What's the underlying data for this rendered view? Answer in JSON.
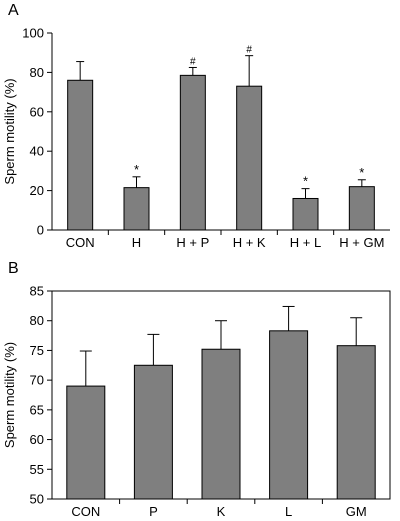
{
  "chart_data": [
    {
      "type": "bar",
      "panel_label": "A",
      "title": "",
      "xlabel": "",
      "ylabel": "Sperm motility (%)",
      "ylim": [
        0,
        100
      ],
      "yticks": [
        "0",
        "20",
        "40",
        "60",
        "80",
        "100"
      ],
      "categories": [
        "CON",
        "H",
        "H + P",
        "H + K",
        "H + L",
        "H + GM"
      ],
      "values": [
        76,
        21.5,
        78.5,
        73,
        16,
        22
      ],
      "errors": [
        9.5,
        5.5,
        4,
        15.5,
        5,
        3.5
      ],
      "annotations": [
        "",
        "*",
        "#",
        "#",
        "*",
        "*"
      ],
      "bar_color": "#7f7f7f",
      "grid": false
    },
    {
      "type": "bar",
      "panel_label": "B",
      "title": "",
      "xlabel": "",
      "ylabel": "Sperm motility (%)",
      "ylim": [
        50,
        85
      ],
      "yticks": [
        "50",
        "55",
        "60",
        "65",
        "70",
        "75",
        "80",
        "85"
      ],
      "categories": [
        "CON",
        "P",
        "K",
        "L",
        "GM"
      ],
      "values": [
        69,
        72.5,
        75.2,
        78.3,
        75.8
      ],
      "errors": [
        5.9,
        5.2,
        4.8,
        4.1,
        4.7
      ],
      "bar_color": "#7f7f7f",
      "grid": false
    }
  ]
}
